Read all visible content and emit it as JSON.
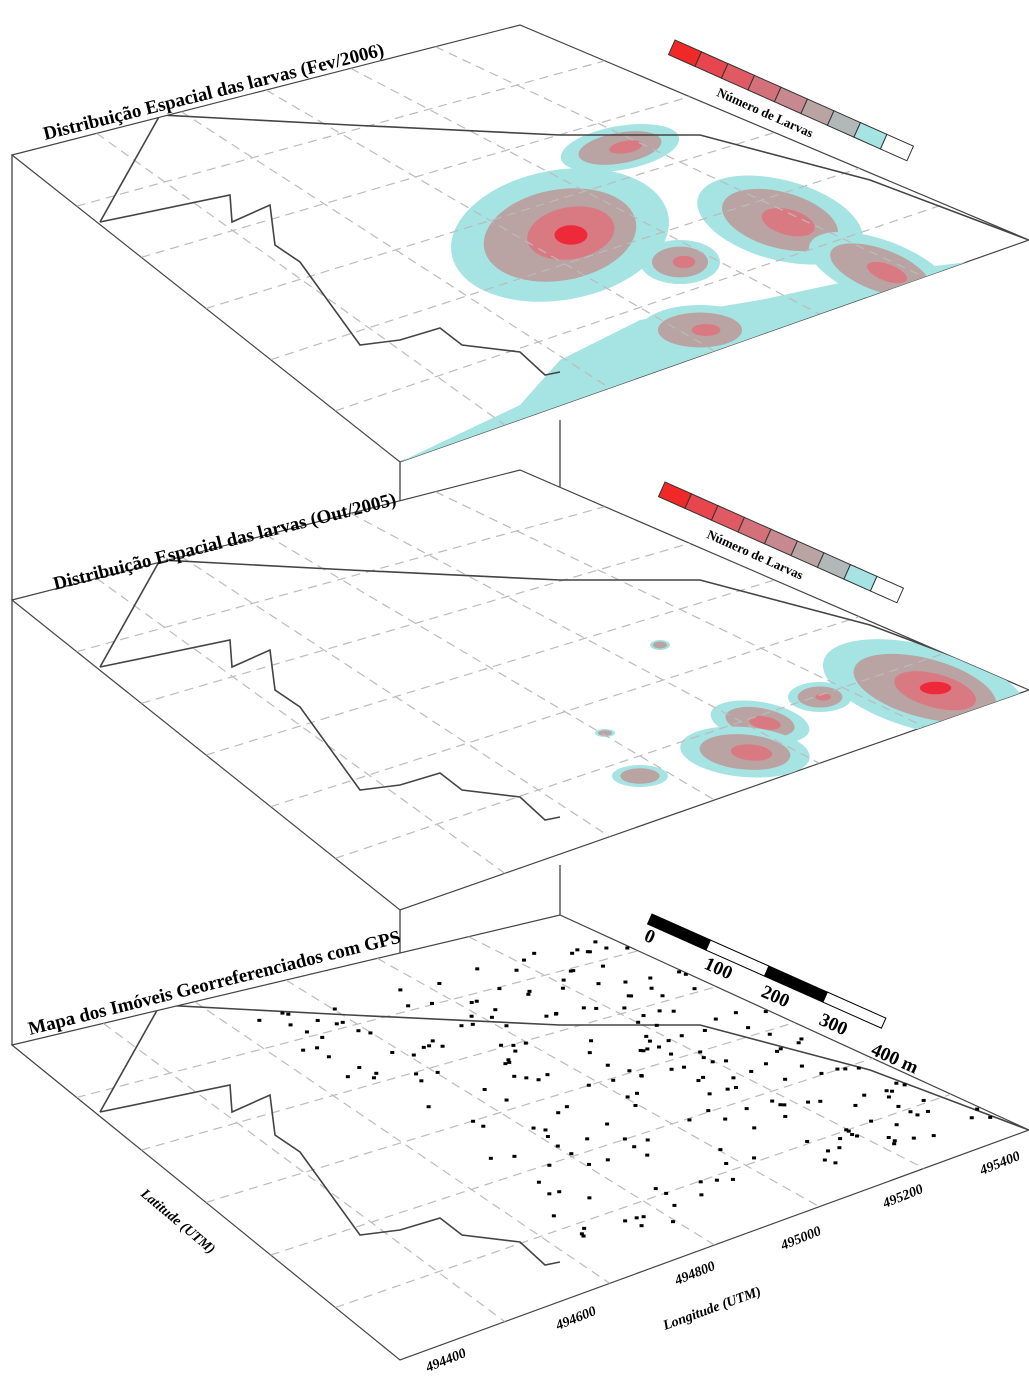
{
  "planes": [
    {
      "title": "Distribuição Espacial das larvas (Fev/2006)",
      "legend_label": "Número de Larvas"
    },
    {
      "title": "Distribuição Espacial das larvas (Out/2005)",
      "legend_label": "Número de Larvas"
    },
    {
      "title": "Mapa dos Imóveis Georreferenciados com GPS"
    }
  ],
  "scale_bar": {
    "labels": [
      "0",
      "100",
      "200",
      "300",
      "400 m"
    ]
  },
  "axes": {
    "x_label": "Longitude  (UTM)",
    "y_label": "Latitude (UTM)",
    "x_ticks": [
      494400,
      494600,
      494800,
      495000,
      495200,
      495400
    ]
  }
}
